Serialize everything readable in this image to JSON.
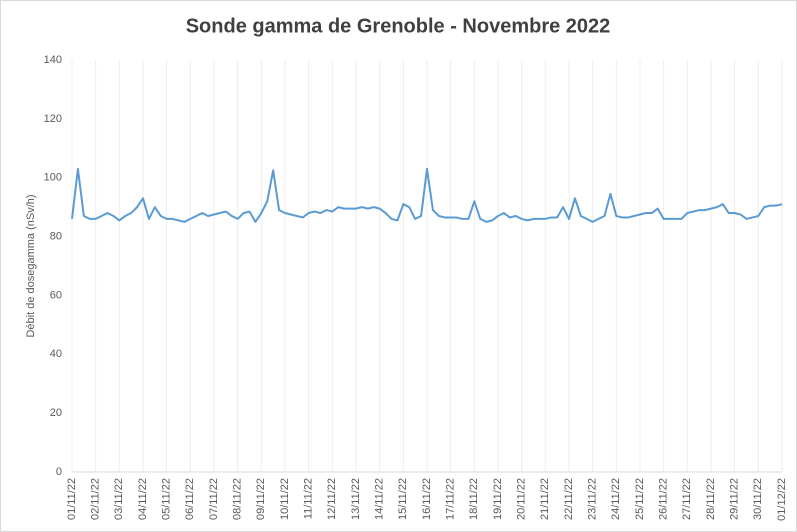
{
  "chart_data": {
    "type": "line",
    "title": "Sonde gamma de Grenoble - Novembre 2022",
    "y_label": "Débit de dosegamma (nSv/h)",
    "categories": [
      "01/11/22",
      null,
      null,
      null,
      "02/11/22",
      null,
      null,
      null,
      "03/11/22",
      null,
      null,
      null,
      "04/11/22",
      null,
      null,
      null,
      "05/11/22",
      null,
      null,
      null,
      "06/11/22",
      null,
      null,
      null,
      "07/11/22",
      null,
      null,
      null,
      "08/11/22",
      null,
      null,
      null,
      "09/11/22",
      null,
      null,
      null,
      "10/11/22",
      null,
      null,
      null,
      "11/11/22",
      null,
      null,
      null,
      "12/11/22",
      null,
      null,
      null,
      "13/11/22",
      null,
      null,
      null,
      "14/11/22",
      null,
      null,
      null,
      "15/11/22",
      null,
      null,
      null,
      "16/11/22",
      null,
      null,
      null,
      "17/11/22",
      null,
      null,
      null,
      "18/11/22",
      null,
      null,
      null,
      "19/11/22",
      null,
      null,
      null,
      "20/11/22",
      null,
      null,
      null,
      "21/11/22",
      null,
      null,
      null,
      "22/11/22",
      null,
      null,
      null,
      "23/11/22",
      null,
      null,
      null,
      "24/11/22",
      null,
      null,
      null,
      "25/11/22",
      null,
      null,
      null,
      "26/11/22",
      null,
      null,
      null,
      "27/11/22",
      null,
      null,
      null,
      "28/11/22",
      null,
      null,
      null,
      "29/11/22",
      null,
      null,
      null,
      "30/11/22",
      null,
      null,
      null,
      "01/12/22"
    ],
    "series": [
      {
        "color": "#5b9bd5",
        "values": [
          86,
          103,
          87,
          86,
          86,
          87,
          88,
          87,
          85.5,
          87,
          88,
          90,
          93,
          86,
          90,
          87,
          86,
          86,
          85.5,
          85,
          86,
          87,
          88,
          87,
          87.5,
          88,
          88.5,
          87,
          86,
          88,
          88.5,
          85,
          88,
          92,
          102.5,
          89,
          88,
          87.5,
          87,
          86.5,
          88,
          88.5,
          88,
          89,
          88.5,
          90,
          89.5,
          89.5,
          89.5,
          90,
          89.5,
          90,
          89.5,
          88,
          86,
          85.5,
          91,
          90,
          86,
          87,
          103,
          89,
          87,
          86.5,
          86.5,
          86.5,
          86,
          86,
          92,
          86,
          85,
          85.5,
          87,
          88,
          86.5,
          87,
          86,
          85.5,
          86,
          86,
          86,
          86.5,
          86.5,
          90,
          86,
          93,
          87,
          86,
          85,
          86,
          87,
          94.5,
          87,
          86.5,
          86.5,
          87,
          87.5,
          88,
          88,
          89.5,
          86,
          86,
          86,
          86,
          88,
          88.5,
          89,
          89,
          89.5,
          90,
          91,
          88,
          88,
          87.5,
          86,
          86.5,
          87,
          90,
          90.5,
          90.5,
          91
        ]
      }
    ],
    "ylim": [
      0,
      140
    ],
    "yticks": [
      0,
      20,
      40,
      60,
      80,
      100,
      120,
      140
    ],
    "grid": "x"
  }
}
